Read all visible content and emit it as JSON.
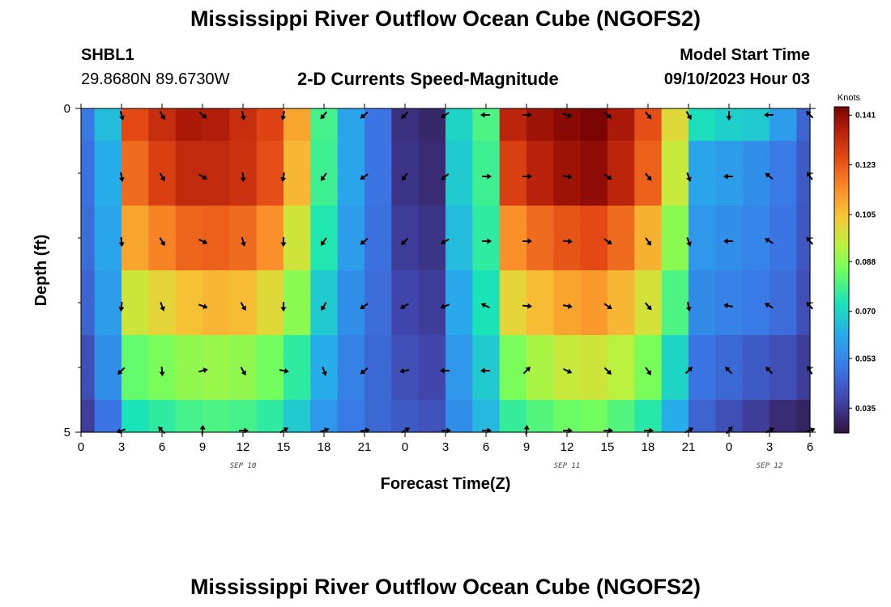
{
  "header": {
    "title": "Mississippi River Outflow Ocean Cube (NGOFS2)",
    "station_id": "SHBL1",
    "station_coords": "29.8680N  89.6730W",
    "subtitle": "2-D Currents Speed-Magnitude",
    "model_start_label": "Model Start Time",
    "model_start_value": "09/10/2023 Hour 03"
  },
  "footer": {
    "title": "Mississippi River Outflow Ocean Cube (NGOFS2)"
  },
  "chart_data": {
    "type": "heatmap",
    "title": "2-D Currents Speed-Magnitude",
    "xlabel": "Forecast Time(Z)",
    "ylabel": "Depth (ft)",
    "x_hours": [
      0,
      3,
      6,
      9,
      12,
      15,
      18,
      21,
      24,
      27,
      30,
      33,
      36,
      39,
      42,
      45,
      48,
      51,
      54
    ],
    "x_tick_labels": [
      "0",
      "3",
      "6",
      "9",
      "12",
      "15",
      "18",
      "21",
      "0",
      "3",
      "6",
      "9",
      "12",
      "15",
      "18",
      "21",
      "0",
      "3",
      "6"
    ],
    "date_labels": [
      {
        "hour": 12,
        "text": "SEP 10"
      },
      {
        "hour": 36,
        "text": "SEP 11"
      },
      {
        "hour": 51,
        "text": "SEP 12"
      }
    ],
    "y_range": [
      0,
      5
    ],
    "y_tick_labels": [
      {
        "depth": 0,
        "text": "0"
      },
      {
        "depth": 5,
        "text": "5"
      }
    ],
    "y_minor_ticks": [
      1,
      2,
      3,
      4
    ],
    "colorbar": {
      "unit": "Knots",
      "range": [
        0.026,
        0.144
      ],
      "tick_values": [
        0.141,
        0.123,
        0.105,
        0.088,
        0.07,
        0.053,
        0.035
      ],
      "tick_labels": [
        "0.141",
        "0.123",
        "0.105",
        "0.088",
        "0.070",
        "0.053",
        "0.035"
      ]
    },
    "rows": [
      {
        "depth_range": [
          0,
          0.5
        ],
        "speed_knots": [
          0.05,
          0.065,
          0.126,
          0.132,
          0.137,
          0.136,
          0.132,
          0.127,
          0.11,
          0.079,
          0.06,
          0.049,
          0.033,
          0.031,
          0.07,
          0.08,
          0.134,
          0.139,
          0.142,
          0.144,
          0.137,
          0.125,
          0.1,
          0.072,
          0.069,
          0.068,
          0.058,
          0.045
        ]
      },
      {
        "depth_range": [
          0.5,
          1.5
        ],
        "speed_knots": [
          0.048,
          0.062,
          0.12,
          0.128,
          0.133,
          0.133,
          0.131,
          0.125,
          0.107,
          0.078,
          0.06,
          0.049,
          0.034,
          0.032,
          0.068,
          0.078,
          0.128,
          0.135,
          0.139,
          0.141,
          0.134,
          0.122,
          0.096,
          0.06,
          0.058,
          0.055,
          0.05,
          0.043
        ]
      },
      {
        "depth_range": [
          1.5,
          2.5
        ],
        "speed_knots": [
          0.047,
          0.06,
          0.11,
          0.116,
          0.121,
          0.122,
          0.12,
          0.114,
          0.097,
          0.074,
          0.058,
          0.048,
          0.036,
          0.034,
          0.065,
          0.076,
          0.114,
          0.12,
          0.124,
          0.126,
          0.12,
          0.108,
          0.088,
          0.057,
          0.055,
          0.053,
          0.049,
          0.042
        ]
      },
      {
        "depth_range": [
          2.5,
          3.5
        ],
        "speed_knots": [
          0.045,
          0.058,
          0.097,
          0.101,
          0.105,
          0.107,
          0.106,
          0.1,
          0.088,
          0.068,
          0.055,
          0.047,
          0.038,
          0.036,
          0.061,
          0.073,
          0.101,
          0.106,
          0.11,
          0.112,
          0.107,
          0.098,
          0.08,
          0.054,
          0.052,
          0.05,
          0.047,
          0.04
        ]
      },
      {
        "depth_range": [
          3.5,
          4.5
        ],
        "speed_knots": [
          0.04,
          0.055,
          0.083,
          0.086,
          0.089,
          0.09,
          0.089,
          0.085,
          0.076,
          0.062,
          0.052,
          0.046,
          0.04,
          0.038,
          0.057,
          0.068,
          0.086,
          0.092,
          0.096,
          0.097,
          0.094,
          0.086,
          0.07,
          0.049,
          0.046,
          0.043,
          0.04,
          0.036
        ]
      },
      {
        "depth_range": [
          4.5,
          5
        ],
        "speed_knots": [
          0.036,
          0.049,
          0.073,
          0.076,
          0.079,
          0.08,
          0.079,
          0.076,
          0.068,
          0.057,
          0.05,
          0.046,
          0.043,
          0.041,
          0.055,
          0.064,
          0.077,
          0.081,
          0.084,
          0.085,
          0.081,
          0.075,
          0.062,
          0.045,
          0.04,
          0.036,
          0.032,
          0.03
        ]
      }
    ],
    "column_hours": [
      0,
      2,
      4,
      6,
      8,
      10,
      12,
      14,
      16,
      18,
      20,
      22,
      24,
      26,
      28,
      30,
      32,
      34,
      36,
      38,
      40,
      42,
      44,
      46,
      48,
      50,
      52,
      54
    ],
    "arrow_rows": [
      {
        "depth": 0.1,
        "arrows": [
          {
            "hour": 3,
            "deg": 165
          },
          {
            "hour": 6,
            "deg": 150
          },
          {
            "hour": 9,
            "deg": 130
          },
          {
            "hour": 12,
            "deg": 170
          },
          {
            "hour": 15,
            "deg": 190
          },
          {
            "hour": 18,
            "deg": 220
          },
          {
            "hour": 21,
            "deg": 230
          },
          {
            "hour": 24,
            "deg": 225
          },
          {
            "hour": 27,
            "deg": 235
          },
          {
            "hour": 30,
            "deg": 270
          },
          {
            "hour": 33,
            "deg": 90
          },
          {
            "hour": 36,
            "deg": 110
          },
          {
            "hour": 39,
            "deg": 130
          },
          {
            "hour": 42,
            "deg": 140
          },
          {
            "hour": 45,
            "deg": 150
          },
          {
            "hour": 48,
            "deg": 180
          },
          {
            "hour": 51,
            "deg": 270
          },
          {
            "hour": 54,
            "deg": 315
          }
        ]
      },
      {
        "depth": 1.05,
        "arrows": [
          {
            "hour": 3,
            "deg": 170
          },
          {
            "hour": 6,
            "deg": 150
          },
          {
            "hour": 9,
            "deg": 120
          },
          {
            "hour": 12,
            "deg": 175
          },
          {
            "hour": 15,
            "deg": 190
          },
          {
            "hour": 18,
            "deg": 215
          },
          {
            "hour": 21,
            "deg": 235
          },
          {
            "hour": 24,
            "deg": 215
          },
          {
            "hour": 27,
            "deg": 230
          },
          {
            "hour": 30,
            "deg": 90
          },
          {
            "hour": 33,
            "deg": 90
          },
          {
            "hour": 36,
            "deg": 100
          },
          {
            "hour": 39,
            "deg": 125
          },
          {
            "hour": 42,
            "deg": 140
          },
          {
            "hour": 45,
            "deg": 160
          },
          {
            "hour": 48,
            "deg": 270
          },
          {
            "hour": 51,
            "deg": 310
          },
          {
            "hour": 54,
            "deg": 325
          }
        ]
      },
      {
        "depth": 2.05,
        "arrows": [
          {
            "hour": 3,
            "deg": 175
          },
          {
            "hour": 6,
            "deg": 150
          },
          {
            "hour": 9,
            "deg": 115
          },
          {
            "hour": 12,
            "deg": 165
          },
          {
            "hour": 15,
            "deg": 180
          },
          {
            "hour": 18,
            "deg": 215
          },
          {
            "hour": 21,
            "deg": 230
          },
          {
            "hour": 24,
            "deg": 225
          },
          {
            "hour": 27,
            "deg": 240
          },
          {
            "hour": 30,
            "deg": 90
          },
          {
            "hour": 33,
            "deg": 90
          },
          {
            "hour": 36,
            "deg": 95
          },
          {
            "hour": 39,
            "deg": 125
          },
          {
            "hour": 42,
            "deg": 145
          },
          {
            "hour": 45,
            "deg": 160
          },
          {
            "hour": 48,
            "deg": 270
          },
          {
            "hour": 51,
            "deg": 300
          },
          {
            "hour": 54,
            "deg": 320
          }
        ]
      },
      {
        "depth": 3.05,
        "arrows": [
          {
            "hour": 3,
            "deg": 185
          },
          {
            "hour": 6,
            "deg": 160
          },
          {
            "hour": 9,
            "deg": 110
          },
          {
            "hour": 12,
            "deg": 150
          },
          {
            "hour": 15,
            "deg": 180
          },
          {
            "hour": 18,
            "deg": 210
          },
          {
            "hour": 21,
            "deg": 235
          },
          {
            "hour": 24,
            "deg": 240
          },
          {
            "hour": 27,
            "deg": 250
          },
          {
            "hour": 30,
            "deg": 295
          },
          {
            "hour": 33,
            "deg": 95
          },
          {
            "hour": 36,
            "deg": 100
          },
          {
            "hour": 39,
            "deg": 125
          },
          {
            "hour": 42,
            "deg": 140
          },
          {
            "hour": 45,
            "deg": 170
          },
          {
            "hour": 48,
            "deg": 280
          },
          {
            "hour": 51,
            "deg": 300
          },
          {
            "hour": 54,
            "deg": 320
          }
        ]
      },
      {
        "depth": 4.05,
        "arrows": [
          {
            "hour": 3,
            "deg": 225
          },
          {
            "hour": 6,
            "deg": 175
          },
          {
            "hour": 9,
            "deg": 75
          },
          {
            "hour": 12,
            "deg": 150
          },
          {
            "hour": 15,
            "deg": 100
          },
          {
            "hour": 18,
            "deg": 160
          },
          {
            "hour": 21,
            "deg": 230
          },
          {
            "hour": 24,
            "deg": 260
          },
          {
            "hour": 27,
            "deg": 270
          },
          {
            "hour": 30,
            "deg": 270
          },
          {
            "hour": 33,
            "deg": 45
          },
          {
            "hour": 36,
            "deg": 115
          },
          {
            "hour": 39,
            "deg": 135
          },
          {
            "hour": 42,
            "deg": 145
          },
          {
            "hour": 45,
            "deg": 45
          },
          {
            "hour": 48,
            "deg": 315
          },
          {
            "hour": 51,
            "deg": 315
          },
          {
            "hour": 54,
            "deg": 330
          }
        ]
      },
      {
        "depth": 5.0,
        "arrows": [
          {
            "hour": 3,
            "deg": 250
          },
          {
            "hour": 6,
            "deg": 315
          },
          {
            "hour": 9,
            "deg": 5
          },
          {
            "hour": 12,
            "deg": 90
          },
          {
            "hour": 15,
            "deg": 60
          },
          {
            "hour": 18,
            "deg": 70
          },
          {
            "hour": 21,
            "deg": 80
          },
          {
            "hour": 24,
            "deg": 60
          },
          {
            "hour": 27,
            "deg": 90
          },
          {
            "hour": 30,
            "deg": 90
          },
          {
            "hour": 33,
            "deg": 5
          },
          {
            "hour": 36,
            "deg": 90
          },
          {
            "hour": 39,
            "deg": 90
          },
          {
            "hour": 42,
            "deg": 90
          },
          {
            "hour": 45,
            "deg": 60
          },
          {
            "hour": 48,
            "deg": 40
          },
          {
            "hour": 51,
            "deg": 60
          },
          {
            "hour": 54,
            "deg": 70
          }
        ]
      }
    ]
  }
}
